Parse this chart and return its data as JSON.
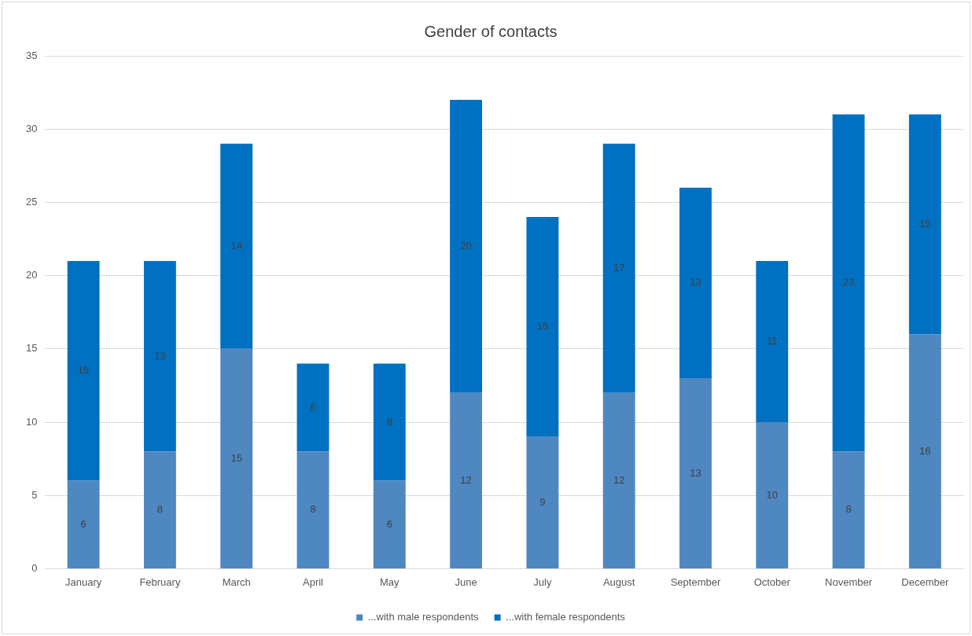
{
  "chart_data": {
    "type": "bar",
    "title": "Gender of contacts",
    "stacked": true,
    "data_labels": true,
    "grid": "y",
    "legend": "bottom",
    "categories": [
      "January",
      "February",
      "March",
      "April",
      "May",
      "June",
      "July",
      "August",
      "September",
      "October",
      "November",
      "December"
    ],
    "series": [
      {
        "name": "...with male respondents",
        "color": "#4f87c0",
        "values": [
          6,
          8,
          15,
          8,
          6,
          12,
          9,
          12,
          13,
          10,
          8,
          16
        ]
      },
      {
        "name": "...with female respondents",
        "color": "#0070c0",
        "values": [
          15,
          13,
          14,
          6,
          8,
          20,
          15,
          17,
          13,
          11,
          23,
          15
        ]
      }
    ],
    "ylim": [
      0,
      35
    ],
    "yticks": [
      0,
      5,
      10,
      15,
      20,
      25,
      30,
      35
    ]
  }
}
